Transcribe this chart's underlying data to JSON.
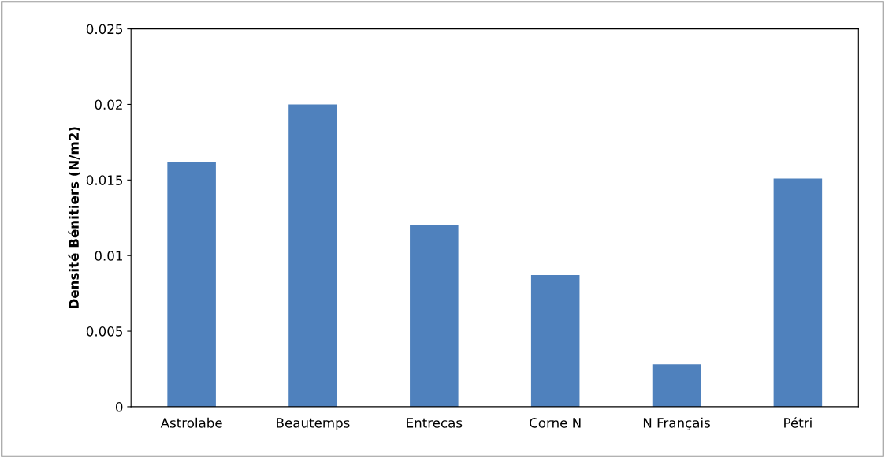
{
  "chart_data": {
    "type": "bar",
    "ylabel": "Densité Bénitiers (N/m2)",
    "categories": [
      "Astrolabe",
      "Beautemps",
      "Entrecas",
      "Corne N",
      "N Français",
      "Pétri"
    ],
    "values": [
      0.0162,
      0.02,
      0.012,
      0.0087,
      0.0028,
      0.0151
    ],
    "color": "#4f81bd",
    "ylim": [
      0,
      0.025
    ],
    "yticks": [
      0,
      0.005,
      0.01,
      0.015,
      0.02,
      0.025
    ],
    "grid": false,
    "legend": false
  }
}
